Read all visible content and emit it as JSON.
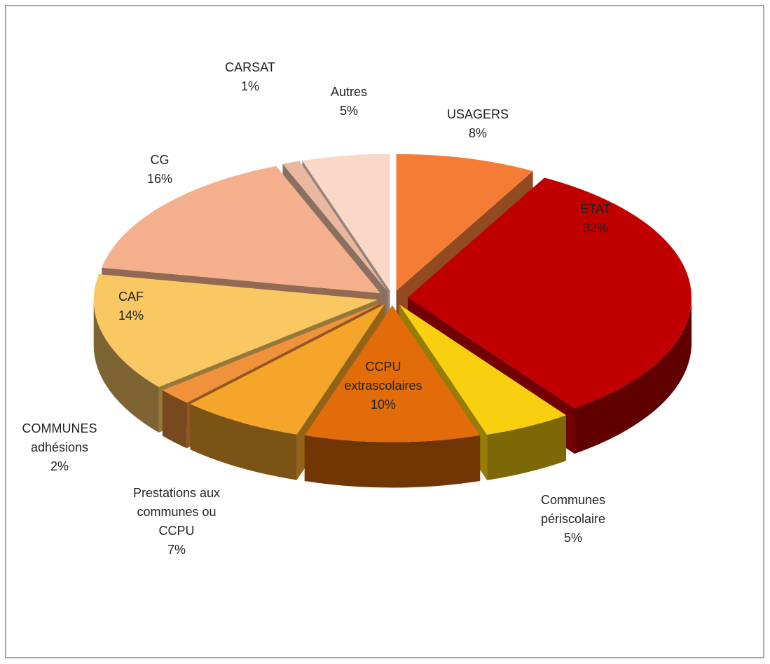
{
  "chart_data": {
    "type": "pie",
    "categories": [
      "USAGERS",
      "ETAT",
      "Communes périscolaire",
      "CCPU extrascolaires",
      "Prestations aux communes ou CCPU",
      "COMMUNES adhésions",
      "CAF",
      "CG",
      "CARSAT",
      "Autres"
    ],
    "values": [
      8,
      32,
      5,
      10,
      7,
      2,
      14,
      16,
      1,
      5
    ],
    "value_labels": [
      "8%",
      "32%",
      "5%",
      "10%",
      "7%",
      "2%",
      "14%",
      "16%",
      "1%",
      "5%"
    ],
    "colors": [
      "#f47c35",
      "#c00000",
      "#f9d00f",
      "#e36c0a",
      "#f5a52a",
      "#f0913c",
      "#fac863",
      "#f4b08c",
      "#e8b9a0",
      "#f9d8c8"
    ]
  }
}
